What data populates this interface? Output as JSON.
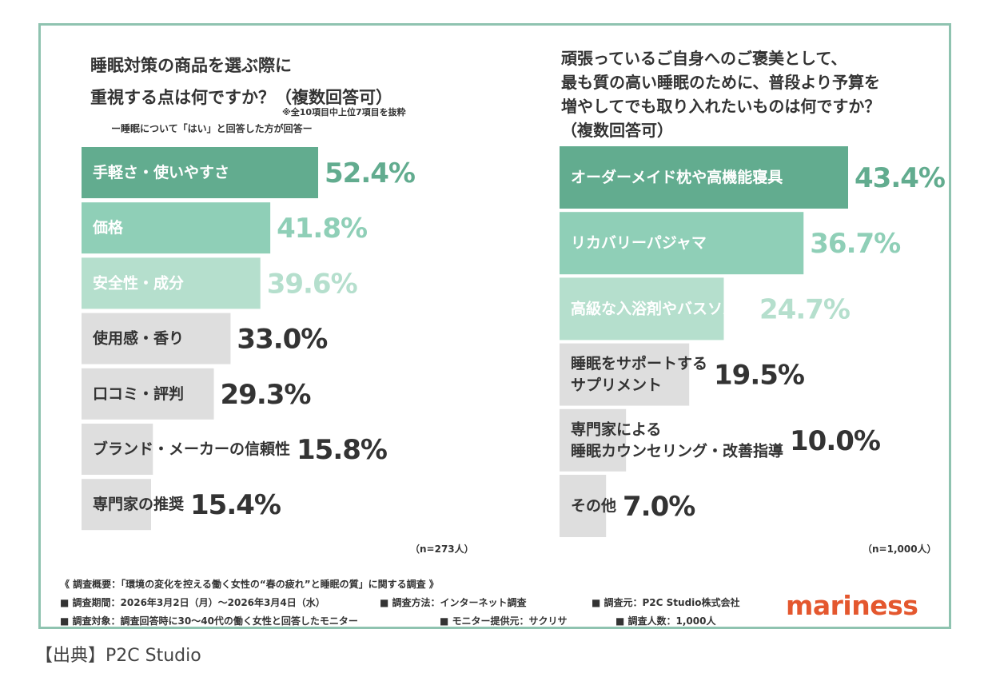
{
  "colors": {
    "frame": "#8fc3b0",
    "dark_green": "#62ac8f",
    "mid_green": "#8fcfb7",
    "light_green": "#b5dfcd",
    "gray": "#dedede",
    "text_dark": "#333333",
    "text_light": "#ffffff",
    "brand": "#e4572e"
  },
  "left": {
    "question": [
      "睡眠対策の商品を選ぶ際に",
      "重視する点は何ですか？（複数回答可）"
    ],
    "note": "※全10項目中上位7項目を抜粋",
    "subtitle": "ー睡眠について「はい」と回答した方が回答ー",
    "n": "（n=273人）"
  },
  "right": {
    "question": [
      "頑張っているご自身へのご褒美として、",
      "最も質の高い睡眠のために、普段より予算を",
      "増やしてでも取り入れたいものは何ですか？",
      "（複数回答可）"
    ],
    "n": "（n=1,000人）"
  },
  "chart_data": [
    {
      "type": "bar",
      "orientation": "horizontal",
      "categories": [
        "手軽さ・使いやすさ",
        "価格",
        "安全性・成分",
        "使用感・香り",
        "口コミ・評判",
        "ブランド・メーカーの信頼性",
        "専門家の推奨"
      ],
      "values": [
        52.4,
        41.8,
        39.6,
        33.0,
        29.3,
        15.8,
        15.4
      ],
      "value_labels": [
        "52.4%",
        "41.8%",
        "39.6%",
        "33.0%",
        "29.3%",
        "15.8%",
        "15.4%"
      ],
      "unit": "%"
    },
    {
      "type": "bar",
      "orientation": "horizontal",
      "categories": [
        "オーダーメイド枕や高機能寝具",
        "リカバリーパジャマ",
        "高級な入浴剤やバスソルト",
        "睡眠をサポートするサプリメント",
        "専門家による睡眠カウンセリング・改善指導",
        "その他"
      ],
      "category_lines": [
        [
          "オーダーメイド枕や高機能寝具"
        ],
        [
          "リカバリーパジャマ"
        ],
        [
          "高級な入浴剤やバスソルト"
        ],
        [
          "睡眠をサポートする",
          "サプリメント"
        ],
        [
          "専門家による",
          "睡眠カウンセリング・改善指導"
        ],
        [
          "その他"
        ]
      ],
      "values": [
        43.4,
        36.7,
        24.7,
        19.5,
        10.0,
        7.0
      ],
      "value_labels": [
        "43.4%",
        "36.7%",
        "24.7%",
        "19.5%",
        "10.0%",
        "7.0%"
      ],
      "unit": "%"
    }
  ],
  "footer": {
    "overview": "《 調査概要：「環境の変化を控える働く女性の“春の疲れ”と睡眠の質」に関する調査 》",
    "period": "■ 調査期間：2026年3月2日（月）～2026年3月4日（水）",
    "method": "■ 調査方法：インターネット調査",
    "source_org": "■ 調査元：P2C Studio株式会社",
    "target": "■ 調査対象：調査回答時に30～40代の働く女性と回答したモニター",
    "provider": "■ モニター提供元：サクリサ",
    "count": "■ 調査人数：1,000人"
  },
  "logo": "mariness",
  "source": "【出典】P2C Studio"
}
